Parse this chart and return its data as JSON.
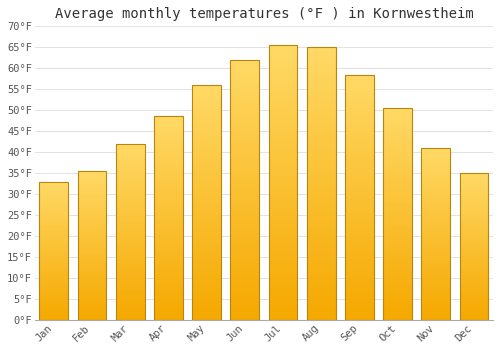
{
  "title": "Average monthly temperatures (°F ) in Kornwestheim",
  "months": [
    "Jan",
    "Feb",
    "Mar",
    "Apr",
    "May",
    "Jun",
    "Jul",
    "Aug",
    "Sep",
    "Oct",
    "Nov",
    "Dec"
  ],
  "values": [
    33,
    35.5,
    42,
    48.5,
    56,
    62,
    65.5,
    65,
    58.5,
    50.5,
    41,
    35
  ],
  "bar_color_bottom": "#F5A800",
  "bar_color_top": "#FFD966",
  "bar_edge_color": "#B8860B",
  "ylim": [
    0,
    70
  ],
  "yticks": [
    0,
    5,
    10,
    15,
    20,
    25,
    30,
    35,
    40,
    45,
    50,
    55,
    60,
    65,
    70
  ],
  "ytick_labels": [
    "0°F",
    "5°F",
    "10°F",
    "15°F",
    "20°F",
    "25°F",
    "30°F",
    "35°F",
    "40°F",
    "45°F",
    "50°F",
    "55°F",
    "60°F",
    "65°F",
    "70°F"
  ],
  "background_color": "#FFFFFF",
  "grid_color": "#DDDDDD",
  "title_fontsize": 10,
  "tick_fontsize": 7.5,
  "bar_width": 0.75,
  "n_strips": 80
}
